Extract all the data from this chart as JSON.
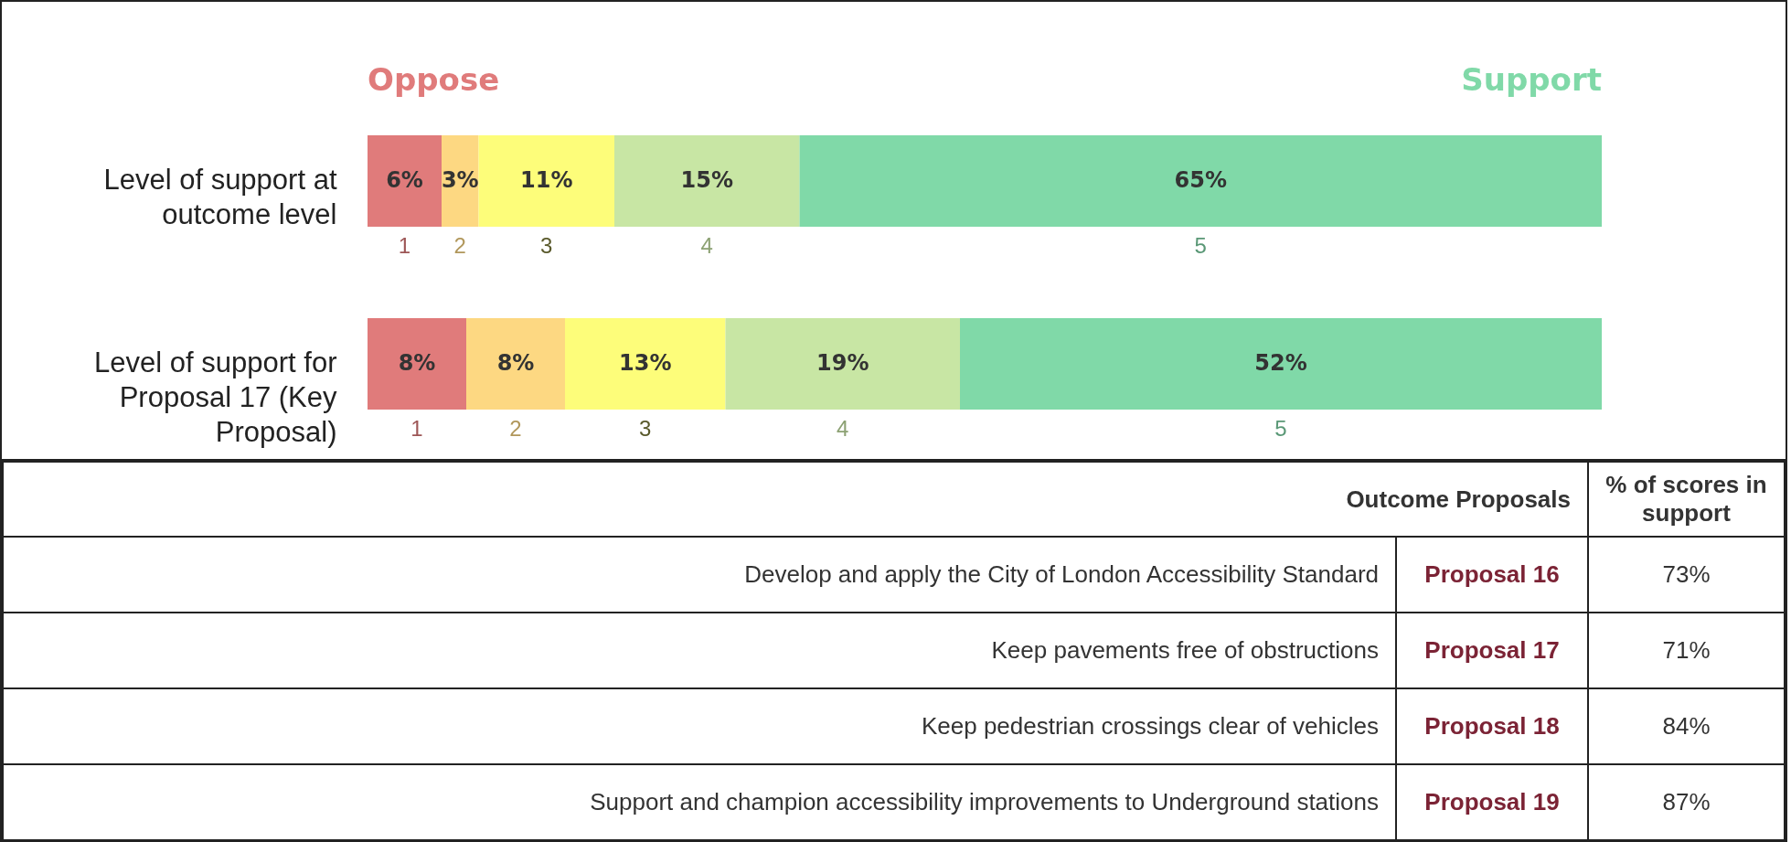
{
  "chart_data": [
    {
      "type": "bar",
      "orientation": "horizontal",
      "stacked": true,
      "categories": [
        "Level of support at outcome level",
        "Level of support for Proposal 17 (Key Proposal)"
      ],
      "series": [
        {
          "name": "1",
          "color": "#e07b7b",
          "values": [
            6,
            8
          ],
          "value_labels": [
            "6%",
            "8%"
          ]
        },
        {
          "name": "2",
          "color": "#fdd882",
          "values": [
            3,
            8
          ],
          "value_labels": [
            "3%",
            "8%"
          ]
        },
        {
          "name": "3",
          "color": "#fdfd7a",
          "values": [
            11,
            13
          ],
          "value_labels": [
            "11%",
            "13%"
          ]
        },
        {
          "name": "4",
          "color": "#c8e6a4",
          "values": [
            15,
            19
          ],
          "value_labels": [
            "15%",
            "19%"
          ]
        },
        {
          "name": "5",
          "color": "#80d9a8",
          "values": [
            65,
            52
          ],
          "value_labels": [
            "65%",
            "52%"
          ]
        }
      ],
      "xlim": [
        0,
        100
      ],
      "tick_labels": "y",
      "annotations": [
        "Oppose",
        "Support"
      ]
    },
    {
      "type": "other",
      "categories": [
        "Proposal 16",
        "Proposal 17",
        "Proposal 18",
        "Proposal 19"
      ],
      "value_labels": [
        "73%",
        "71%",
        "84%",
        "87%"
      ],
      "annotations": [
        "Outcome Proposals",
        "% of scores in support",
        "Develop and apply the City of London Accessibility Standard",
        "Keep pavements free of obstructions",
        "Keep pedestrian crossings clear of vehicles",
        "Support and champion accessibility improvements to Underground stations"
      ]
    }
  ]
}
